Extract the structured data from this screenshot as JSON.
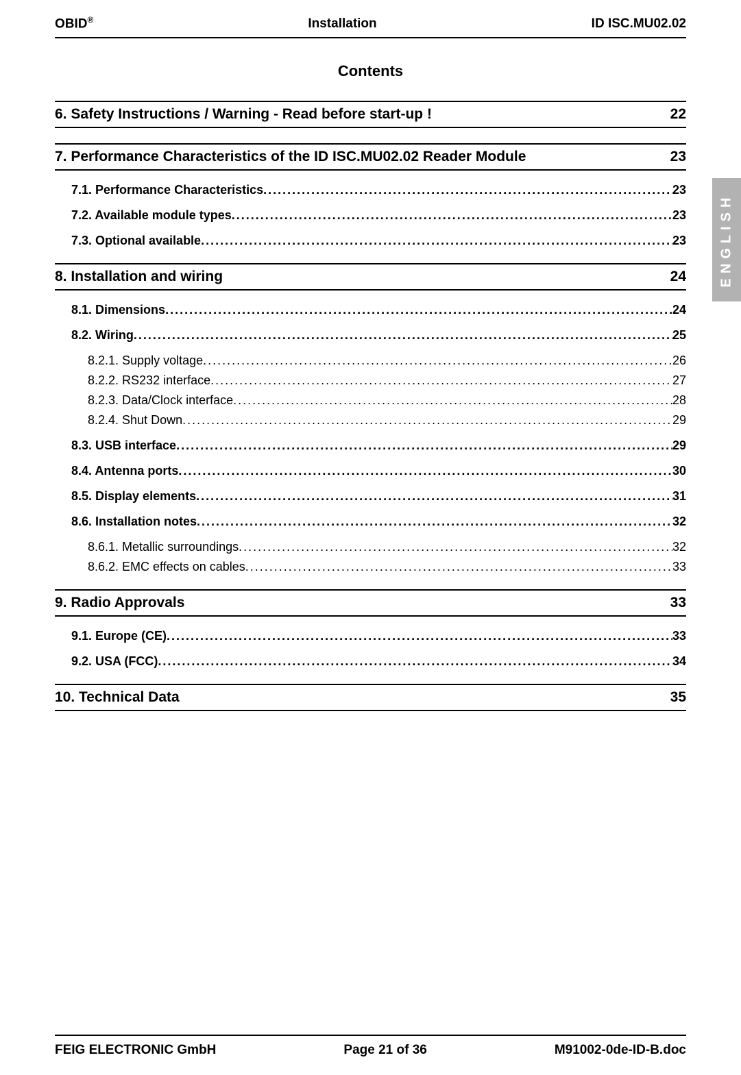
{
  "header": {
    "brand": "OBID",
    "brand_superscript": "®",
    "center": "Installation",
    "doc_id": "ID ISC.MU02.02"
  },
  "contents_title": "Contents",
  "side_tab": "ENGLISH",
  "sections": [
    {
      "title": "6.  Safety Instructions / Warning - Read before start-up !",
      "page": "22",
      "entries": []
    },
    {
      "title": "7.  Performance Characteristics of the ID ISC.MU02.02 Reader Module",
      "page": "23",
      "entries": [
        {
          "label": "7.1.  Performance Characteristics ",
          "page": "23",
          "level": 1
        },
        {
          "label": "7.2.  Available module types ",
          "page": "23",
          "level": 1
        },
        {
          "label": "7.3.  Optional available",
          "page": "23",
          "level": 1
        }
      ]
    },
    {
      "title": "8.  Installation and wiring",
      "page": "24",
      "entries": [
        {
          "label": "8.1.  Dimensions",
          "page": "24",
          "level": 1
        },
        {
          "label": "8.2.  Wiring ",
          "page": "25",
          "level": 1
        },
        {
          "label": "8.2.1.  Supply voltage ",
          "page": "26",
          "level": 2
        },
        {
          "label": "8.2.2.  RS232 interface",
          "page": "27",
          "level": 2
        },
        {
          "label": "8.2.3.  Data/Clock interface ",
          "page": "28",
          "level": 2
        },
        {
          "label": "8.2.4.  Shut Down ",
          "page": "29",
          "level": 2
        },
        {
          "label": "8.3.  USB interface",
          "page": "29",
          "level": 1
        },
        {
          "label": "8.4.  Antenna ports",
          "page": "30",
          "level": 1
        },
        {
          "label": "8.5.  Display elements",
          "page": "31",
          "level": 1
        },
        {
          "label": "8.6.  Installation notes",
          "page": "32",
          "level": 1
        },
        {
          "label": "8.6.1.  Metallic surroundings",
          "page": "32",
          "level": 2
        },
        {
          "label": "8.6.2.  EMC effects on cables",
          "page": "33",
          "level": 2
        }
      ]
    },
    {
      "title": "9.  Radio Approvals",
      "page": "33",
      "entries": [
        {
          "label": "9.1.  Europe (CE)",
          "page": "33",
          "level": 1
        },
        {
          "label": "9.2.  USA (FCC)",
          "page": "34",
          "level": 1
        }
      ]
    },
    {
      "title": "10.  Technical Data",
      "page": "35",
      "entries": []
    }
  ],
  "footer": {
    "company": "FEIG ELECTRONIC GmbH",
    "page_info": "Page 21 of 36",
    "file": "M91002-0de-ID-B.doc"
  },
  "colors": {
    "rule": "#000000",
    "side_tab_bg": "#b2b2b2",
    "side_tab_text": "#ffffff",
    "text": "#000000"
  }
}
